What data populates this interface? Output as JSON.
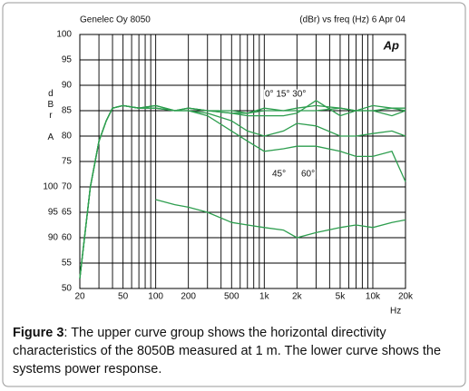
{
  "chart_data": {
    "type": "line",
    "title": "Genelec Oy 8050",
    "subtitle": "(dBr) vs freq (Hz) 6 Apr 04",
    "logo": "Ap",
    "ylabel": "dBr A",
    "xlabel": "Hz",
    "log_x": true,
    "grid": true,
    "xlim": [
      20,
      20000
    ],
    "xticks": [
      20,
      50,
      100,
      200,
      500,
      {
        "value": 1000,
        "label": "1k"
      },
      {
        "value": 2000,
        "label": "2k"
      },
      {
        "value": 5000,
        "label": "5k"
      },
      {
        "value": 10000,
        "label": "10k"
      },
      {
        "value": 20000,
        "label": "20k"
      }
    ],
    "xgrid": [
      20,
      30,
      40,
      50,
      60,
      70,
      80,
      90,
      100,
      200,
      300,
      400,
      500,
      600,
      700,
      800,
      900,
      1000,
      2000,
      3000,
      4000,
      5000,
      6000,
      7000,
      8000,
      9000,
      10000,
      20000
    ],
    "ylim": [
      50,
      100
    ],
    "yticks": [
      50,
      55,
      60,
      65,
      70,
      75,
      80,
      85,
      90,
      95,
      100
    ],
    "y2lim": [
      80,
      130
    ],
    "y2ticks": [
      90,
      95,
      100
    ],
    "x": [
      20,
      25,
      30,
      35,
      40,
      50,
      70,
      100,
      150,
      200,
      300,
      500,
      700,
      1000,
      1500,
      2000,
      3000,
      5000,
      7000,
      10000,
      15000,
      20000
    ],
    "series": [
      {
        "name": "0°",
        "color": "#2e9e4f",
        "values": [
          52,
          70,
          79,
          83,
          85.5,
          86,
          85.5,
          86,
          85,
          85.5,
          85,
          85,
          84.5,
          85.5,
          85,
          85.5,
          86,
          85.5,
          85,
          86,
          85.5,
          85
        ]
      },
      {
        "name": "15°",
        "color": "#2e9e4f",
        "values": [
          52,
          70,
          79,
          83,
          85.5,
          86,
          85.5,
          86,
          85,
          85.5,
          85,
          84.5,
          84.5,
          85,
          85,
          85,
          85,
          85.5,
          85,
          85,
          85.5,
          85.5
        ]
      },
      {
        "name": "30°",
        "color": "#2e9e4f",
        "values": [
          52,
          70,
          79,
          83,
          85.5,
          86,
          85.5,
          86,
          85,
          85.5,
          85,
          84.5,
          84,
          84,
          84,
          84.5,
          87,
          84,
          85,
          85,
          84,
          85
        ]
      },
      {
        "name": "45°",
        "color": "#2e9e4f",
        "values": [
          52,
          70,
          79,
          83,
          85.5,
          86,
          85.5,
          85.5,
          85,
          85,
          84.5,
          83,
          81,
          80,
          81,
          82.5,
          82,
          80,
          80,
          80.5,
          81,
          80
        ]
      },
      {
        "name": "60°",
        "color": "#2e9e4f",
        "values": [
          52,
          70,
          79,
          83,
          85.5,
          86,
          85.5,
          85.5,
          85,
          85,
          84,
          81,
          79,
          77,
          77.5,
          78,
          78,
          77,
          76,
          76,
          77,
          71
        ]
      },
      {
        "name": "power",
        "color": "#2e9e4f",
        "axis": "y2",
        "values": [
          null,
          null,
          null,
          null,
          null,
          null,
          null,
          97.5,
          96.5,
          96,
          95,
          93,
          92.5,
          92,
          91.5,
          90,
          91,
          92,
          92.5,
          92,
          93,
          93.5
        ]
      }
    ],
    "annotations": [
      "0° 15° 30°",
      "45°",
      "60°"
    ],
    "caption": {
      "label": "Figure 3",
      "text": ": The upper curve group shows the horizontal directivity characteristics of the 8050B measured at 1 m. The lower curve shows the systems power response."
    }
  }
}
